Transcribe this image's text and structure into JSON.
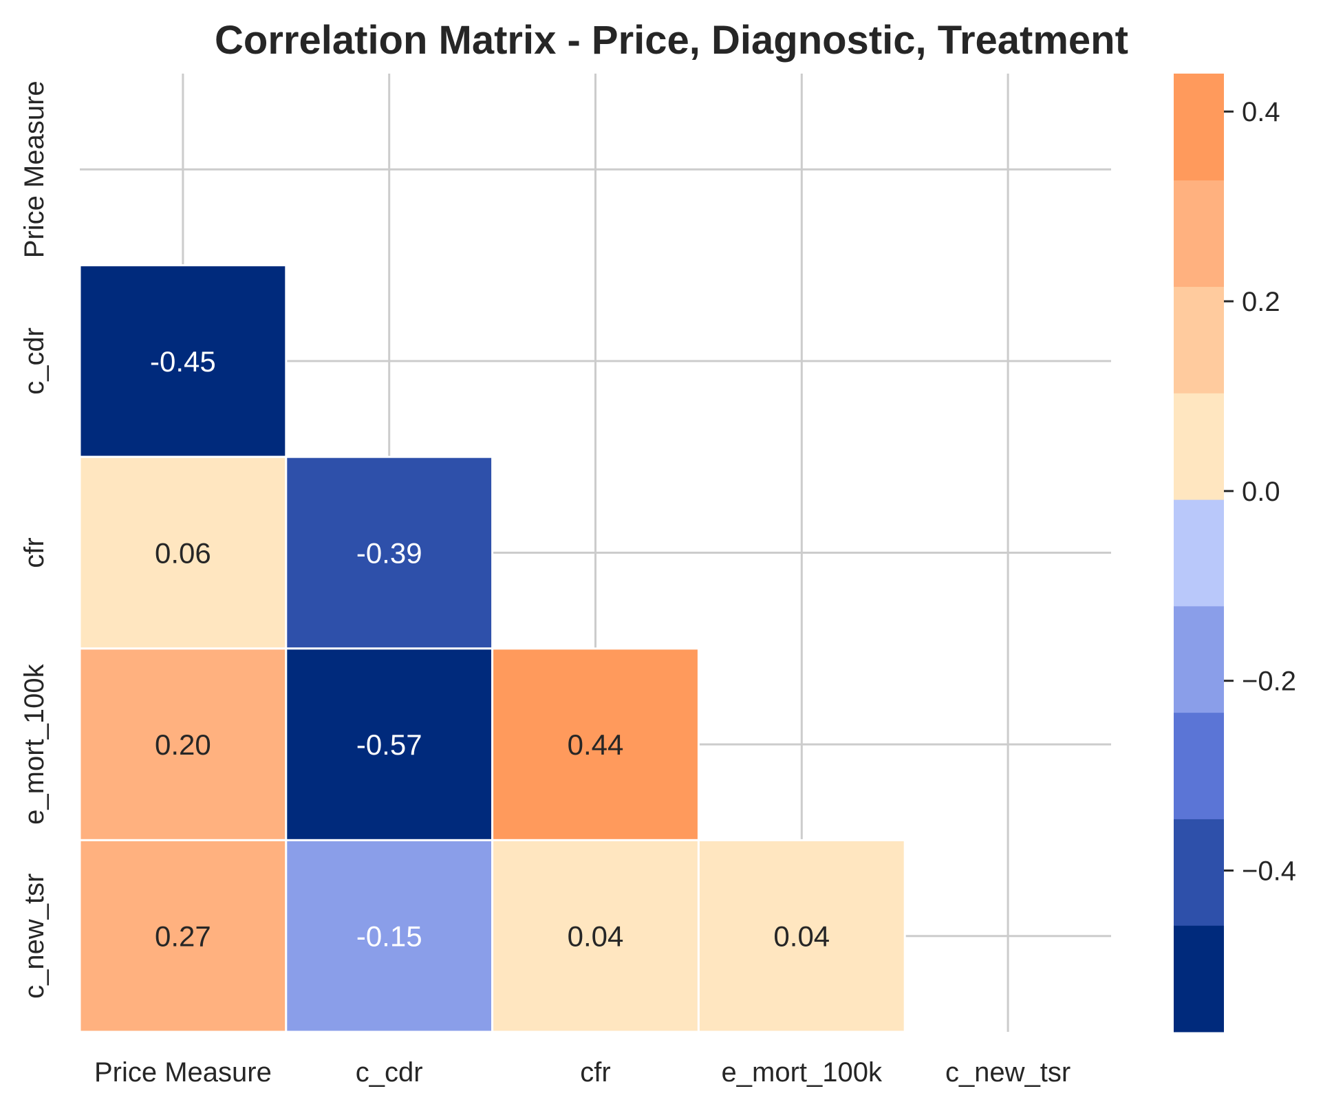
{
  "chart_data": {
    "type": "heatmap",
    "title": "Correlation Matrix - Price, Diagnostic, Treatment",
    "x_labels": [
      "Price Measure",
      "c_cdr",
      "cfr",
      "e_mort_100k",
      "c_new_tsr"
    ],
    "y_labels": [
      "Price Measure",
      "c_cdr",
      "cfr",
      "e_mort_100k",
      "c_new_tsr"
    ],
    "mask": "upper-triangle-including-diagonal",
    "matrix": [
      [
        null,
        null,
        null,
        null,
        null
      ],
      [
        -0.45,
        null,
        null,
        null,
        null
      ],
      [
        0.06,
        -0.39,
        null,
        null,
        null
      ],
      [
        0.2,
        -0.57,
        0.44,
        null,
        null
      ],
      [
        0.27,
        -0.15,
        0.04,
        0.04,
        null
      ]
    ],
    "cell_labels": [
      [
        null,
        null,
        null,
        null,
        null
      ],
      [
        "-0.45",
        null,
        null,
        null,
        null
      ],
      [
        "0.06",
        "-0.39",
        null,
        null,
        null
      ],
      [
        "0.20",
        "-0.57",
        "0.44",
        null,
        null
      ],
      [
        "0.27",
        "-0.15",
        "0.04",
        "0.04",
        null
      ]
    ],
    "grid": true,
    "colorbar": {
      "placement": "right",
      "range": [
        -0.57,
        0.44
      ],
      "bins": 8,
      "colors": [
        "#002a7c",
        "#2e50aa",
        "#5b75d6",
        "#8a9ee9",
        "#b9c8fa",
        "#ffe6c0",
        "#ffcb9e",
        "#ffb17f",
        "#ff9a5c"
      ],
      "ticks": [
        -0.4,
        -0.2,
        0.0,
        0.2,
        0.4
      ],
      "tick_labels": [
        "−0.4",
        "−0.2",
        "0.0",
        "0.2",
        "0.4"
      ]
    },
    "text_colors": {
      "dark_cell": "#ffffff",
      "light_cell": "#262626"
    }
  }
}
